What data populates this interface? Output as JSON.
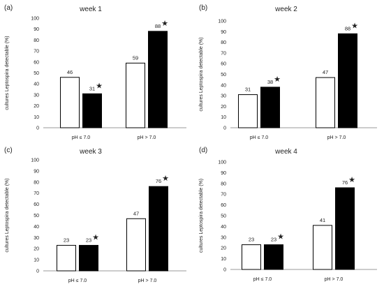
{
  "chart_data": [
    {
      "type": "bar",
      "panel_label": "(a)",
      "title": "week 1",
      "ylabel": "cultures Leptospira detectable (%)",
      "categories": [
        "pH ≤ 7.0",
        "pH > 7.0"
      ],
      "ylim": [
        0,
        100
      ],
      "yticks": [
        0,
        10,
        20,
        30,
        40,
        50,
        60,
        70,
        80,
        90,
        100
      ],
      "series": [
        {
          "fill": "#ffffff",
          "values": [
            46,
            59
          ],
          "value_labels": [
            "46",
            "59"
          ],
          "star": [
            false,
            false
          ]
        },
        {
          "fill": "#000000",
          "values": [
            31,
            88
          ],
          "value_labels": [
            "31",
            "88"
          ],
          "star": [
            true,
            true
          ]
        }
      ],
      "marker_symbol": "★"
    },
    {
      "type": "bar",
      "panel_label": "(b)",
      "title": "week 2",
      "ylabel": "cultures Leptospira detectable (%)",
      "categories": [
        "pH ≤ 7.0",
        "pH > 7.0"
      ],
      "ylim": [
        0,
        100
      ],
      "yticks": [
        0,
        10,
        20,
        30,
        40,
        50,
        60,
        70,
        80,
        90,
        100
      ],
      "series": [
        {
          "fill": "#ffffff",
          "values": [
            31,
            47
          ],
          "value_labels": [
            "31",
            "47"
          ],
          "star": [
            false,
            false
          ]
        },
        {
          "fill": "#000000",
          "values": [
            38,
            88
          ],
          "value_labels": [
            "38",
            "88"
          ],
          "star": [
            true,
            true
          ]
        }
      ],
      "marker_symbol": "★"
    },
    {
      "type": "bar",
      "panel_label": "(c)",
      "title": "week 3",
      "ylabel": "cultures Leptospira detectable (%)",
      "categories": [
        "pH ≤ 7.0",
        "pH > 7.0"
      ],
      "ylim": [
        0,
        100
      ],
      "yticks": [
        0,
        10,
        20,
        30,
        40,
        50,
        60,
        70,
        80,
        90,
        100
      ],
      "series": [
        {
          "fill": "#ffffff",
          "values": [
            23,
            47
          ],
          "value_labels": [
            "23",
            "47"
          ],
          "star": [
            false,
            false
          ]
        },
        {
          "fill": "#000000",
          "values": [
            23,
            76
          ],
          "value_labels": [
            "23",
            "76"
          ],
          "star": [
            true,
            true
          ]
        }
      ],
      "marker_symbol": "★"
    },
    {
      "type": "bar",
      "panel_label": "(d)",
      "title": "week 4",
      "ylabel": "cultures Leptospira detectable (%)",
      "categories": [
        "pH ≤ 7.0",
        "pH > 7.0"
      ],
      "ylim": [
        0,
        100
      ],
      "yticks": [
        0,
        10,
        20,
        30,
        40,
        50,
        60,
        70,
        80,
        90,
        100
      ],
      "series": [
        {
          "fill": "#ffffff",
          "values": [
            23,
            41
          ],
          "value_labels": [
            "23",
            "41"
          ],
          "star": [
            false,
            false
          ]
        },
        {
          "fill": "#000000",
          "values": [
            23,
            76
          ],
          "value_labels": [
            "23",
            "76"
          ],
          "star": [
            true,
            true
          ]
        }
      ],
      "marker_symbol": "★"
    }
  ]
}
